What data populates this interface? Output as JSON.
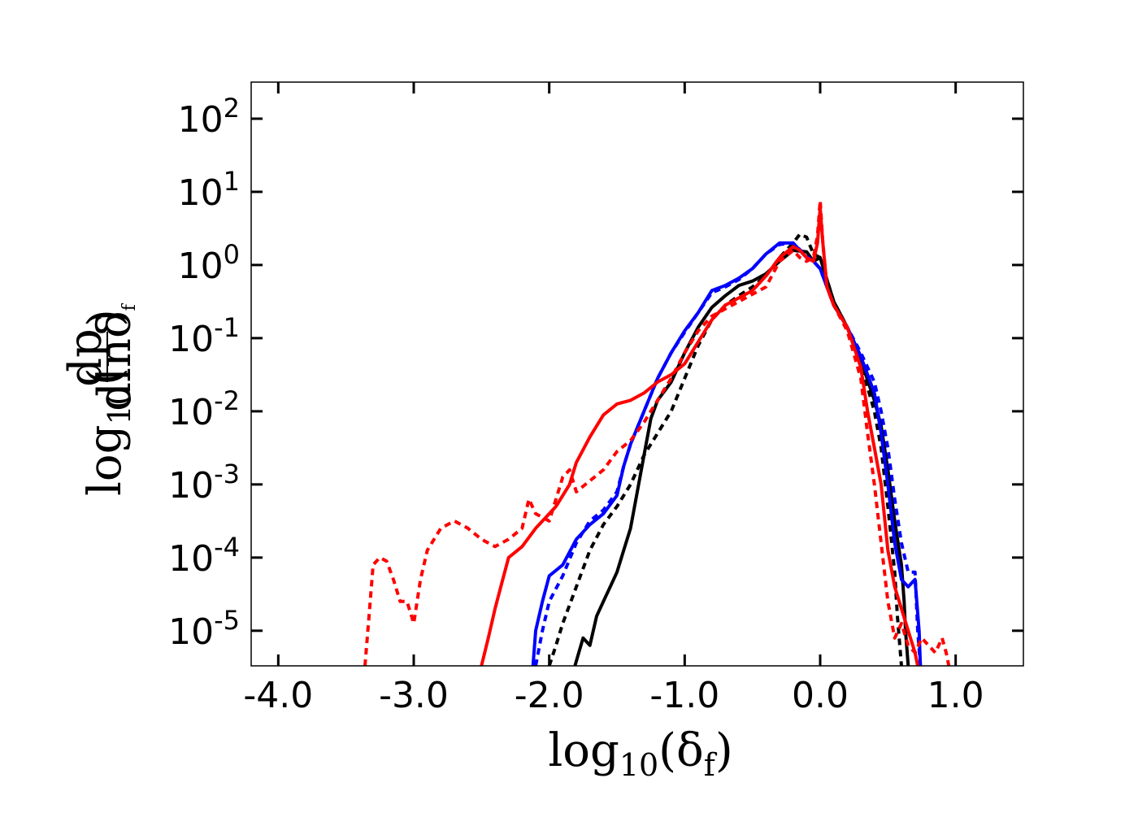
{
  "chart_data": {
    "type": "line",
    "title": "",
    "xlabel": "log10(δf)",
    "ylabel": "log10(dp / dlnδf)",
    "xlim": [
      -4.2,
      1.5
    ],
    "ylim_log10": [
      -5.48,
      2.5
    ],
    "x_ticks": [
      -4.0,
      -3.0,
      -2.0,
      -1.0,
      0.0,
      1.0
    ],
    "x_tick_labels": [
      "-4.0",
      "-3.0",
      "-2.0",
      "-1.0",
      "0.0",
      "1.0"
    ],
    "y_ticks_log10": [
      2,
      1,
      0,
      -1,
      -2,
      -3,
      -4,
      -5
    ],
    "y_tick_labels": [
      {
        "base": "10",
        "exp": "2"
      },
      {
        "base": "10",
        "exp": "1"
      },
      {
        "base": "10",
        "exp": "0"
      },
      {
        "base": "10",
        "exp": "-1"
      },
      {
        "base": "10",
        "exp": "-2"
      },
      {
        "base": "10",
        "exp": "-3"
      },
      {
        "base": "10",
        "exp": "-4"
      },
      {
        "base": "10",
        "exp": "-5"
      }
    ],
    "grid": false,
    "legend": "none",
    "series": [
      {
        "name": "black solid",
        "color": "#000000",
        "style": "solid",
        "points": [
          [
            -1.81,
            -5.48
          ],
          [
            -1.75,
            -5.1
          ],
          [
            -1.7,
            -5.2
          ],
          [
            -1.65,
            -4.8
          ],
          [
            -1.6,
            -4.6
          ],
          [
            -1.55,
            -4.4
          ],
          [
            -1.5,
            -4.2
          ],
          [
            -1.45,
            -3.9
          ],
          [
            -1.4,
            -3.6
          ],
          [
            -1.35,
            -3.1
          ],
          [
            -1.3,
            -2.6
          ],
          [
            -1.25,
            -2.1
          ],
          [
            -1.2,
            -1.85
          ],
          [
            -1.1,
            -1.6
          ],
          [
            -1.0,
            -1.2
          ],
          [
            -0.9,
            -0.85
          ],
          [
            -0.8,
            -0.58
          ],
          [
            -0.7,
            -0.42
          ],
          [
            -0.6,
            -0.28
          ],
          [
            -0.5,
            -0.22
          ],
          [
            -0.4,
            -0.12
          ],
          [
            -0.3,
            0.05
          ],
          [
            -0.2,
            0.2
          ],
          [
            -0.1,
            0.18
          ],
          [
            -0.05,
            0.05
          ],
          [
            0.0,
            0.1
          ],
          [
            0.05,
            -0.2
          ],
          [
            0.1,
            -0.5
          ],
          [
            0.2,
            -0.85
          ],
          [
            0.3,
            -1.3
          ],
          [
            0.4,
            -1.85
          ],
          [
            0.45,
            -2.2
          ],
          [
            0.5,
            -2.8
          ],
          [
            0.55,
            -3.5
          ],
          [
            0.6,
            -4.1
          ],
          [
            0.62,
            -4.6
          ],
          [
            0.63,
            -5.0
          ],
          [
            0.65,
            -5.48
          ]
        ]
      },
      {
        "name": "black dashed",
        "color": "#000000",
        "style": "dashed",
        "points": [
          [
            -2.0,
            -5.48
          ],
          [
            -1.95,
            -5.2
          ],
          [
            -1.9,
            -4.9
          ],
          [
            -1.8,
            -4.4
          ],
          [
            -1.7,
            -3.9
          ],
          [
            -1.6,
            -3.55
          ],
          [
            -1.5,
            -3.3
          ],
          [
            -1.4,
            -3.0
          ],
          [
            -1.3,
            -2.6
          ],
          [
            -1.2,
            -2.3
          ],
          [
            -1.1,
            -2.0
          ],
          [
            -1.0,
            -1.55
          ],
          [
            -0.9,
            -1.1
          ],
          [
            -0.8,
            -0.75
          ],
          [
            -0.7,
            -0.55
          ],
          [
            -0.6,
            -0.42
          ],
          [
            -0.5,
            -0.3
          ],
          [
            -0.4,
            -0.15
          ],
          [
            -0.3,
            0.1
          ],
          [
            -0.2,
            0.3
          ],
          [
            -0.15,
            0.42
          ],
          [
            -0.1,
            0.38
          ],
          [
            -0.05,
            0.15
          ],
          [
            0.0,
            0.1
          ],
          [
            0.05,
            -0.2
          ],
          [
            0.1,
            -0.5
          ],
          [
            0.2,
            -0.85
          ],
          [
            0.3,
            -1.35
          ],
          [
            0.4,
            -2.0
          ],
          [
            0.45,
            -2.5
          ],
          [
            0.5,
            -3.3
          ],
          [
            0.55,
            -4.2
          ],
          [
            0.57,
            -4.8
          ],
          [
            0.6,
            -5.48
          ]
        ]
      },
      {
        "name": "blue solid",
        "color": "#0000ff",
        "style": "solid",
        "points": [
          [
            -2.12,
            -5.48
          ],
          [
            -2.1,
            -5.0
          ],
          [
            -2.05,
            -4.6
          ],
          [
            -2.0,
            -4.25
          ],
          [
            -1.9,
            -4.1
          ],
          [
            -1.8,
            -3.75
          ],
          [
            -1.7,
            -3.55
          ],
          [
            -1.6,
            -3.4
          ],
          [
            -1.5,
            -3.15
          ],
          [
            -1.45,
            -2.75
          ],
          [
            -1.4,
            -2.45
          ],
          [
            -1.3,
            -2.0
          ],
          [
            -1.2,
            -1.55
          ],
          [
            -1.1,
            -1.2
          ],
          [
            -1.0,
            -0.9
          ],
          [
            -0.9,
            -0.65
          ],
          [
            -0.8,
            -0.35
          ],
          [
            -0.7,
            -0.28
          ],
          [
            -0.6,
            -0.18
          ],
          [
            -0.5,
            -0.05
          ],
          [
            -0.4,
            0.15
          ],
          [
            -0.3,
            0.3
          ],
          [
            -0.2,
            0.3
          ],
          [
            -0.1,
            0.1
          ],
          [
            -0.05,
            0.05
          ],
          [
            0.0,
            -0.05
          ],
          [
            0.05,
            -0.3
          ],
          [
            0.1,
            -0.55
          ],
          [
            0.2,
            -0.85
          ],
          [
            0.3,
            -1.25
          ],
          [
            0.4,
            -1.75
          ],
          [
            0.45,
            -2.3
          ],
          [
            0.5,
            -3.0
          ],
          [
            0.55,
            -3.8
          ],
          [
            0.6,
            -4.3
          ],
          [
            0.65,
            -4.4
          ],
          [
            0.7,
            -4.3
          ],
          [
            0.73,
            -5.0
          ],
          [
            0.74,
            -5.48
          ]
        ]
      },
      {
        "name": "blue dashed",
        "color": "#0000ff",
        "style": "dashed",
        "points": [
          [
            -2.1,
            -5.48
          ],
          [
            -2.05,
            -5.0
          ],
          [
            -2.0,
            -4.6
          ],
          [
            -1.9,
            -4.25
          ],
          [
            -1.8,
            -3.8
          ],
          [
            -1.7,
            -3.5
          ],
          [
            -1.6,
            -3.35
          ],
          [
            -1.5,
            -3.1
          ],
          [
            -1.45,
            -2.75
          ],
          [
            -1.4,
            -2.45
          ],
          [
            -1.3,
            -2.0
          ],
          [
            -1.2,
            -1.55
          ],
          [
            -1.1,
            -1.2
          ],
          [
            -1.0,
            -0.92
          ],
          [
            -0.9,
            -0.65
          ],
          [
            -0.8,
            -0.38
          ],
          [
            -0.7,
            -0.3
          ],
          [
            -0.6,
            -0.2
          ],
          [
            -0.5,
            -0.05
          ],
          [
            -0.4,
            0.15
          ],
          [
            -0.3,
            0.28
          ],
          [
            -0.2,
            0.3
          ],
          [
            -0.1,
            0.12
          ],
          [
            -0.05,
            0.05
          ],
          [
            0.0,
            -0.05
          ],
          [
            0.05,
            -0.3
          ],
          [
            0.1,
            -0.55
          ],
          [
            0.2,
            -0.85
          ],
          [
            0.3,
            -1.2
          ],
          [
            0.4,
            -1.6
          ],
          [
            0.45,
            -2.0
          ],
          [
            0.5,
            -2.5
          ],
          [
            0.55,
            -3.2
          ],
          [
            0.6,
            -3.8
          ],
          [
            0.65,
            -4.2
          ],
          [
            0.7,
            -4.2
          ],
          [
            0.72,
            -5.0
          ],
          [
            0.74,
            -5.48
          ]
        ]
      },
      {
        "name": "red solid",
        "color": "#ff0000",
        "style": "solid",
        "points": [
          [
            -2.5,
            -5.48
          ],
          [
            -2.45,
            -5.1
          ],
          [
            -2.4,
            -4.7
          ],
          [
            -2.35,
            -4.35
          ],
          [
            -2.3,
            -4.0
          ],
          [
            -2.2,
            -3.85
          ],
          [
            -2.1,
            -3.6
          ],
          [
            -2.0,
            -3.4
          ],
          [
            -1.95,
            -3.3
          ],
          [
            -1.85,
            -3.0
          ],
          [
            -1.8,
            -2.7
          ],
          [
            -1.7,
            -2.35
          ],
          [
            -1.6,
            -2.05
          ],
          [
            -1.5,
            -1.9
          ],
          [
            -1.4,
            -1.85
          ],
          [
            -1.3,
            -1.75
          ],
          [
            -1.2,
            -1.6
          ],
          [
            -1.1,
            -1.5
          ],
          [
            -1.0,
            -1.35
          ],
          [
            -0.9,
            -1.05
          ],
          [
            -0.8,
            -0.75
          ],
          [
            -0.7,
            -0.55
          ],
          [
            -0.6,
            -0.45
          ],
          [
            -0.5,
            -0.35
          ],
          [
            -0.4,
            -0.15
          ],
          [
            -0.3,
            0.1
          ],
          [
            -0.2,
            0.25
          ],
          [
            -0.15,
            0.2
          ],
          [
            -0.1,
            0.1
          ],
          [
            -0.05,
            0.05
          ],
          [
            -0.02,
            0.3
          ],
          [
            0.0,
            0.78
          ],
          [
            0.02,
            0.3
          ],
          [
            0.05,
            -0.3
          ],
          [
            0.1,
            -0.55
          ],
          [
            0.2,
            -0.85
          ],
          [
            0.3,
            -1.4
          ],
          [
            0.35,
            -2.0
          ],
          [
            0.4,
            -2.5
          ],
          [
            0.45,
            -3.0
          ],
          [
            0.5,
            -3.9
          ],
          [
            0.55,
            -4.4
          ],
          [
            0.6,
            -4.7
          ],
          [
            0.65,
            -5.0
          ],
          [
            0.7,
            -5.3
          ],
          [
            0.72,
            -5.48
          ]
        ]
      },
      {
        "name": "red dashed",
        "color": "#ff0000",
        "style": "dashed",
        "points": [
          [
            -3.36,
            -5.48
          ],
          [
            -3.33,
            -4.8
          ],
          [
            -3.3,
            -4.1
          ],
          [
            -3.25,
            -4.0
          ],
          [
            -3.2,
            -4.05
          ],
          [
            -3.15,
            -4.3
          ],
          [
            -3.1,
            -4.6
          ],
          [
            -3.05,
            -4.6
          ],
          [
            -3.0,
            -4.9
          ],
          [
            -2.95,
            -4.3
          ],
          [
            -2.9,
            -3.9
          ],
          [
            -2.8,
            -3.6
          ],
          [
            -2.7,
            -3.5
          ],
          [
            -2.6,
            -3.6
          ],
          [
            -2.5,
            -3.75
          ],
          [
            -2.4,
            -3.85
          ],
          [
            -2.3,
            -3.75
          ],
          [
            -2.2,
            -3.6
          ],
          [
            -2.15,
            -3.2
          ],
          [
            -2.1,
            -3.4
          ],
          [
            -2.0,
            -3.5
          ],
          [
            -1.95,
            -3.2
          ],
          [
            -1.9,
            -2.9
          ],
          [
            -1.85,
            -2.8
          ],
          [
            -1.8,
            -3.1
          ],
          [
            -1.7,
            -2.95
          ],
          [
            -1.6,
            -2.8
          ],
          [
            -1.5,
            -2.55
          ],
          [
            -1.4,
            -2.4
          ],
          [
            -1.3,
            -2.15
          ],
          [
            -1.2,
            -1.85
          ],
          [
            -1.1,
            -1.55
          ],
          [
            -1.0,
            -1.2
          ],
          [
            -0.9,
            -0.9
          ],
          [
            -0.8,
            -0.7
          ],
          [
            -0.7,
            -0.6
          ],
          [
            -0.6,
            -0.5
          ],
          [
            -0.5,
            -0.4
          ],
          [
            -0.4,
            -0.3
          ],
          [
            -0.3,
            0.05
          ],
          [
            -0.2,
            0.2
          ],
          [
            -0.15,
            0.1
          ],
          [
            -0.1,
            0.05
          ],
          [
            -0.05,
            0.1
          ],
          [
            -0.02,
            0.4
          ],
          [
            0.0,
            0.88
          ],
          [
            0.02,
            0.3
          ],
          [
            0.05,
            -0.3
          ],
          [
            0.1,
            -0.55
          ],
          [
            0.2,
            -0.9
          ],
          [
            0.3,
            -1.55
          ],
          [
            0.35,
            -2.3
          ],
          [
            0.4,
            -3.0
          ],
          [
            0.45,
            -3.8
          ],
          [
            0.5,
            -4.6
          ],
          [
            0.55,
            -5.1
          ],
          [
            0.6,
            -4.9
          ],
          [
            0.65,
            -5.2
          ],
          [
            0.7,
            -5.3
          ],
          [
            0.75,
            -5.1
          ],
          [
            0.8,
            -5.2
          ],
          [
            0.85,
            -5.3
          ],
          [
            0.9,
            -5.1
          ],
          [
            0.93,
            -5.3
          ],
          [
            0.95,
            -5.48
          ]
        ]
      }
    ]
  }
}
